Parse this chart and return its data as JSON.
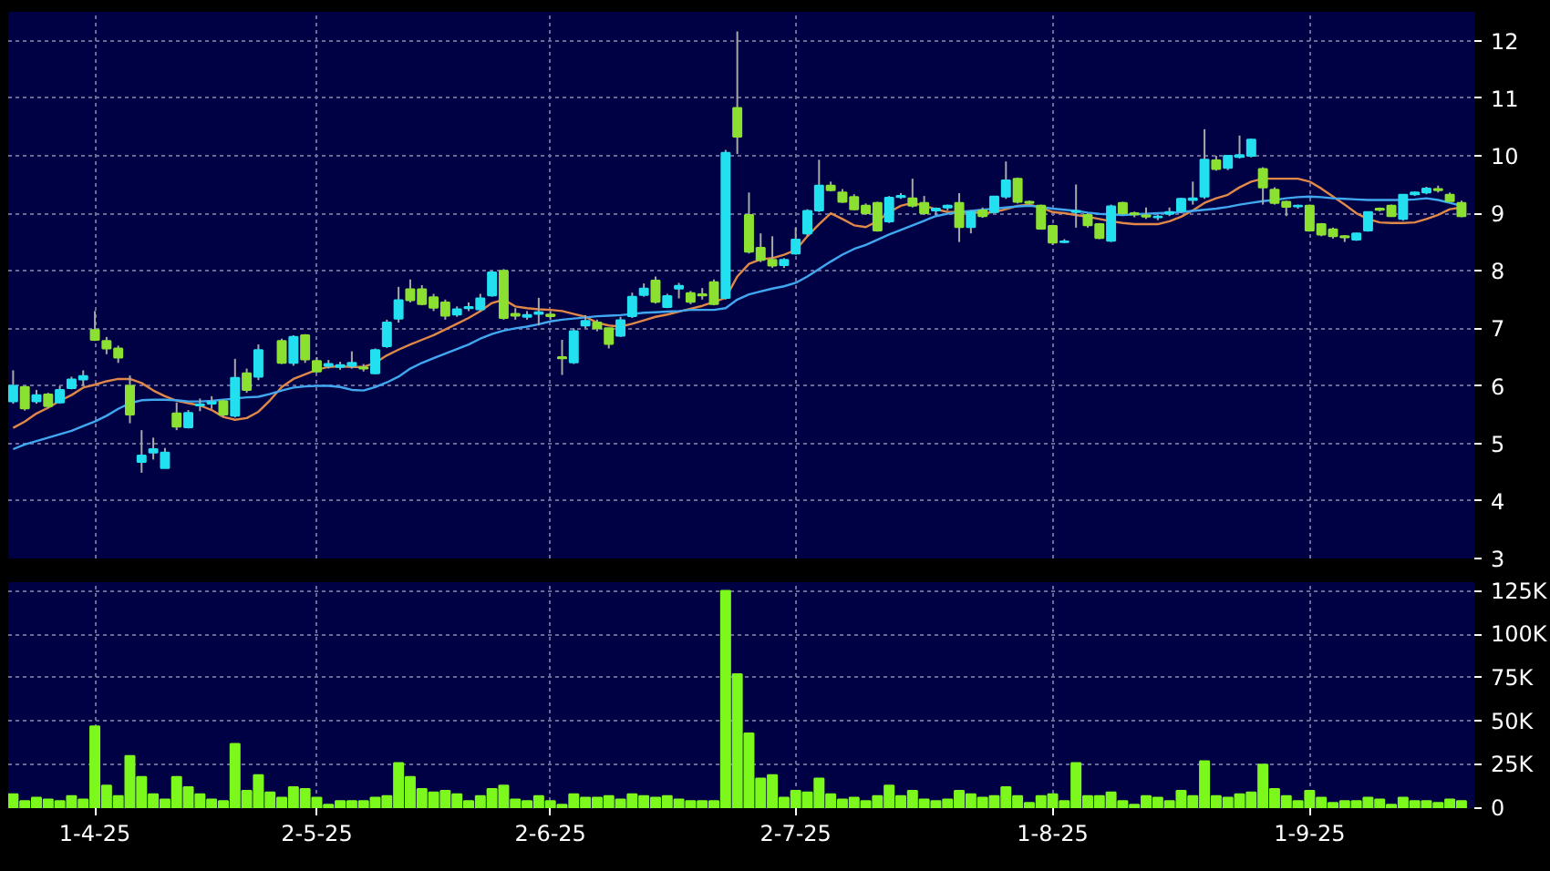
{
  "chart_data": [
    {
      "type": "candlestick",
      "categories": [
        null,
        null,
        null,
        null,
        null,
        null,
        null,
        null,
        null,
        null,
        null,
        null,
        null,
        null,
        null,
        null,
        null,
        null,
        null,
        null,
        null,
        null,
        null,
        null,
        null,
        null,
        null,
        null,
        null,
        null,
        null,
        null,
        null,
        null,
        null,
        null,
        null,
        null,
        null,
        null,
        null,
        null,
        null,
        null,
        null,
        null,
        null,
        null,
        null,
        null,
        null,
        null,
        null,
        null,
        null,
        null,
        null,
        null,
        null,
        null,
        null,
        null,
        null,
        null,
        null,
        null,
        null,
        null,
        null,
        null,
        null,
        null,
        null,
        null,
        null,
        null,
        null,
        null,
        null,
        null,
        null,
        null,
        null,
        null,
        null,
        null,
        null,
        null,
        null,
        null,
        null,
        null,
        null,
        null,
        null,
        null,
        null,
        null,
        null,
        null,
        null,
        null,
        null,
        null,
        null,
        null,
        null,
        null,
        null,
        null,
        null,
        null,
        null,
        null,
        null,
        null,
        null,
        null,
        null,
        null,
        null,
        null,
        null,
        null,
        null
      ],
      "ohlc": [
        [
          5.73,
          6.27,
          5.69,
          6.0
        ],
        [
          5.98,
          6.0,
          5.57,
          5.61
        ],
        [
          5.73,
          5.93,
          5.69,
          5.84
        ],
        [
          5.85,
          5.88,
          5.62,
          5.65
        ],
        [
          5.71,
          6.0,
          5.69,
          5.93
        ],
        [
          5.96,
          6.16,
          5.94,
          6.11
        ],
        [
          6.11,
          6.27,
          6.0,
          6.17
        ],
        [
          6.97,
          7.3,
          6.78,
          6.8
        ],
        [
          6.78,
          6.85,
          6.55,
          6.65
        ],
        [
          6.65,
          6.7,
          6.4,
          6.49
        ],
        [
          6.0,
          6.18,
          5.35,
          5.5
        ],
        [
          4.68,
          5.23,
          4.49,
          4.79
        ],
        [
          4.84,
          5.1,
          4.72,
          4.9
        ],
        [
          4.57,
          4.92,
          4.57,
          4.84
        ],
        [
          5.52,
          5.71,
          5.23,
          5.29
        ],
        [
          5.28,
          5.58,
          5.26,
          5.53
        ],
        [
          5.66,
          5.78,
          5.56,
          5.68
        ],
        [
          5.69,
          5.82,
          5.6,
          5.72
        ],
        [
          5.73,
          5.76,
          5.47,
          5.5
        ],
        [
          5.48,
          6.47,
          5.45,
          6.14
        ],
        [
          6.22,
          6.3,
          5.88,
          5.93
        ],
        [
          6.16,
          6.72,
          6.1,
          6.62
        ],
        null,
        [
          6.78,
          6.82,
          6.38,
          6.4
        ],
        [
          6.4,
          6.88,
          6.35,
          6.85
        ],
        [
          6.88,
          6.9,
          6.4,
          6.46
        ],
        [
          6.43,
          6.5,
          6.23,
          6.25
        ],
        [
          6.35,
          6.45,
          6.3,
          6.38
        ],
        [
          6.33,
          6.42,
          6.28,
          6.36
        ],
        [
          6.35,
          6.6,
          6.3,
          6.4
        ],
        [
          6.32,
          6.38,
          6.25,
          6.3
        ],
        [
          6.22,
          6.65,
          6.2,
          6.62
        ],
        [
          6.69,
          7.15,
          6.66,
          7.1
        ],
        [
          7.17,
          7.72,
          7.1,
          7.49
        ],
        [
          7.68,
          7.85,
          7.45,
          7.49
        ],
        [
          7.68,
          7.75,
          7.4,
          7.42
        ],
        [
          7.54,
          7.6,
          7.3,
          7.36
        ],
        [
          7.45,
          7.5,
          7.15,
          7.22
        ],
        [
          7.24,
          7.38,
          7.2,
          7.33
        ],
        [
          7.35,
          7.45,
          7.3,
          7.37
        ],
        [
          7.33,
          7.6,
          7.3,
          7.52
        ],
        [
          7.57,
          8.0,
          7.55,
          7.97
        ],
        [
          8.0,
          8.03,
          7.15,
          7.18
        ],
        [
          7.25,
          7.35,
          7.15,
          7.22
        ],
        [
          7.2,
          7.3,
          7.15,
          7.23
        ],
        [
          7.25,
          7.53,
          7.05,
          7.28
        ],
        [
          7.24,
          7.3,
          7.15,
          7.21
        ],
        [
          6.5,
          6.8,
          6.19,
          6.48
        ],
        [
          6.41,
          7.0,
          6.38,
          6.95
        ],
        [
          7.05,
          7.23,
          7.0,
          7.13
        ],
        [
          7.1,
          7.15,
          6.95,
          7.0
        ],
        [
          7.0,
          7.0,
          6.65,
          6.73
        ],
        [
          6.87,
          7.2,
          6.85,
          7.14
        ],
        [
          7.21,
          7.62,
          7.18,
          7.55
        ],
        [
          7.58,
          7.78,
          7.55,
          7.69
        ],
        [
          7.83,
          7.9,
          7.43,
          7.46
        ],
        [
          7.37,
          7.6,
          7.35,
          7.56
        ],
        [
          7.69,
          7.79,
          7.52,
          7.74
        ],
        [
          7.61,
          7.65,
          7.42,
          7.46
        ],
        [
          7.59,
          7.7,
          7.5,
          7.57
        ],
        [
          7.8,
          7.85,
          7.4,
          7.42
        ],
        [
          7.53,
          10.1,
          7.5,
          10.05
        ],
        [
          10.83,
          12.16,
          10.03,
          10.33
        ],
        [
          8.97,
          9.36,
          8.3,
          8.33
        ],
        [
          8.4,
          8.65,
          8.15,
          8.19
        ],
        [
          8.19,
          8.6,
          8.05,
          8.09
        ],
        [
          8.1,
          8.22,
          8.05,
          8.19
        ],
        [
          8.3,
          8.75,
          8.28,
          8.54
        ],
        [
          8.65,
          9.07,
          8.6,
          9.04
        ],
        [
          9.05,
          9.93,
          9.02,
          9.48
        ],
        [
          9.48,
          9.55,
          9.38,
          9.4
        ],
        [
          9.36,
          9.42,
          9.18,
          9.2
        ],
        [
          9.28,
          9.33,
          9.05,
          9.07
        ],
        [
          9.13,
          9.17,
          8.97,
          9.0
        ],
        [
          9.18,
          9.2,
          8.68,
          8.7
        ],
        [
          8.86,
          9.3,
          8.83,
          9.27
        ],
        [
          9.28,
          9.35,
          9.25,
          9.3
        ],
        [
          9.26,
          9.6,
          9.1,
          9.13
        ],
        [
          9.18,
          9.3,
          8.97,
          9.0
        ],
        [
          9.05,
          9.1,
          8.97,
          9.08
        ],
        [
          9.1,
          9.15,
          9.05,
          9.13
        ],
        [
          9.18,
          9.35,
          8.5,
          8.76
        ],
        [
          8.76,
          9.05,
          8.65,
          9.02
        ],
        [
          9.05,
          9.1,
          8.92,
          8.95
        ],
        [
          9.02,
          9.3,
          9.0,
          9.29
        ],
        [
          9.29,
          9.9,
          9.25,
          9.57
        ],
        [
          9.6,
          9.62,
          9.17,
          9.2
        ],
        [
          9.2,
          9.22,
          9.15,
          9.18
        ],
        [
          9.13,
          9.15,
          8.72,
          8.73
        ],
        [
          8.78,
          8.8,
          8.45,
          8.49
        ],
        [
          8.5,
          8.55,
          8.48,
          8.51
        ],
        [
          9.02,
          9.5,
          8.75,
          9.04
        ],
        [
          8.97,
          9.0,
          8.75,
          8.79
        ],
        [
          8.81,
          8.83,
          8.55,
          8.57
        ],
        [
          8.52,
          9.15,
          8.5,
          9.12
        ],
        [
          9.18,
          9.2,
          8.97,
          9.0
        ],
        [
          9.0,
          9.03,
          8.93,
          8.98
        ],
        [
          8.96,
          9.1,
          8.9,
          8.94
        ],
        [
          8.93,
          8.98,
          8.88,
          8.94
        ],
        [
          8.99,
          9.1,
          8.95,
          9.02
        ],
        [
          9.04,
          9.27,
          9.0,
          9.25
        ],
        [
          9.23,
          9.55,
          9.15,
          9.26
        ],
        [
          9.29,
          10.46,
          9.25,
          9.93
        ],
        [
          9.92,
          10.0,
          9.74,
          9.77
        ],
        [
          9.79,
          10.0,
          9.75,
          10.0
        ],
        [
          9.98,
          10.35,
          9.95,
          10.01
        ],
        [
          10.0,
          10.3,
          9.97,
          10.28
        ],
        [
          9.77,
          9.8,
          9.15,
          9.45
        ],
        [
          9.41,
          9.45,
          9.15,
          9.18
        ],
        [
          9.2,
          9.22,
          8.95,
          9.11
        ],
        [
          9.12,
          9.15,
          9.08,
          9.13
        ],
        [
          9.13,
          9.15,
          8.68,
          8.7
        ],
        [
          8.81,
          8.83,
          8.6,
          8.63
        ],
        [
          8.72,
          8.75,
          8.56,
          8.6
        ],
        [
          8.6,
          8.62,
          8.5,
          8.58
        ],
        [
          8.54,
          8.66,
          8.52,
          8.65
        ],
        [
          8.7,
          9.03,
          8.68,
          9.02
        ],
        [
          9.08,
          9.1,
          9.03,
          9.06
        ],
        [
          9.13,
          9.15,
          8.94,
          8.95
        ],
        [
          8.9,
          9.33,
          8.87,
          9.32
        ],
        [
          9.33,
          9.38,
          9.3,
          9.36
        ],
        [
          9.36,
          9.46,
          9.33,
          9.43
        ],
        [
          9.42,
          9.48,
          9.36,
          9.4
        ],
        [
          9.32,
          9.36,
          9.2,
          9.21
        ],
        [
          9.18,
          9.22,
          8.93,
          8.95
        ]
      ],
      "colors": [
        "#22e0f0",
        "#8be031",
        "#22e0f0",
        "#8be031",
        "#22e0f0",
        "#22e0f0",
        "#22e0f0",
        "#8be031",
        "#8be031",
        "#8be031",
        "#8be031",
        "#22e0f0",
        "#22e0f0",
        "#22e0f0",
        "#8be031",
        "#22e0f0",
        "#22e0f0",
        "#22e0f0",
        "#8be031",
        "#22e0f0",
        "#8be031",
        "#22e0f0",
        null,
        "#8be031",
        "#22e0f0",
        "#8be031",
        "#8be031",
        "#22e0f0",
        "#22e0f0",
        "#22e0f0",
        "#8be031",
        "#22e0f0",
        "#22e0f0",
        "#22e0f0",
        "#8be031",
        "#8be031",
        "#8be031",
        "#8be031",
        "#22e0f0",
        "#22e0f0",
        "#22e0f0",
        "#22e0f0",
        "#8be031",
        "#8be031",
        "#22e0f0",
        "#22e0f0",
        "#8be031",
        "#8be031",
        "#22e0f0",
        "#22e0f0",
        "#8be031",
        "#8be031",
        "#22e0f0",
        "#22e0f0",
        "#22e0f0",
        "#8be031",
        "#22e0f0",
        "#22e0f0",
        "#8be031",
        "#8be031",
        "#8be031",
        "#22e0f0",
        "#8be031",
        "#8be031",
        "#8be031",
        "#8be031",
        "#22e0f0",
        "#22e0f0",
        "#22e0f0",
        "#22e0f0",
        "#8be031",
        "#8be031",
        "#8be031",
        "#8be031",
        "#8be031",
        "#22e0f0",
        "#22e0f0",
        "#8be031",
        "#8be031",
        "#22e0f0",
        "#22e0f0",
        "#8be031",
        "#22e0f0",
        "#8be031",
        "#22e0f0",
        "#22e0f0",
        "#8be031",
        "#8be031",
        "#8be031",
        "#8be031",
        "#22e0f0",
        "#22e0f0",
        "#8be031",
        "#8be031",
        "#22e0f0",
        "#8be031",
        "#8be031",
        "#8be031",
        "#22e0f0",
        "#22e0f0",
        "#22e0f0",
        "#22e0f0",
        "#22e0f0",
        "#8be031",
        "#22e0f0",
        "#22e0f0",
        "#22e0f0",
        "#8be031",
        "#8be031",
        "#8be031",
        "#22e0f0",
        "#8be031",
        "#8be031",
        "#8be031",
        "#8be031",
        "#22e0f0",
        "#22e0f0",
        "#8be031",
        "#8be031",
        "#22e0f0",
        "#22e0f0",
        "#22e0f0",
        "#8be031",
        "#8be031",
        "#8be031"
      ],
      "series": [
        {
          "type": "line",
          "color": "#e08848",
          "values": [
            5.27,
            5.38,
            5.52,
            5.62,
            5.74,
            5.84,
            5.97,
            6.02,
            6.08,
            6.12,
            6.12,
            6.05,
            5.92,
            5.82,
            5.74,
            5.7,
            5.66,
            5.58,
            5.46,
            5.41,
            5.44,
            5.55,
            5.75,
            5.98,
            6.12,
            6.2,
            6.28,
            6.33,
            6.34,
            6.33,
            6.33,
            6.4,
            6.53,
            6.63,
            6.72,
            6.8,
            6.88,
            6.98,
            7.08,
            7.18,
            7.3,
            7.44,
            7.5,
            7.38,
            7.35,
            7.33,
            7.32,
            7.3,
            7.25,
            7.2,
            7.1,
            7.05,
            7.03,
            7.08,
            7.14,
            7.2,
            7.24,
            7.29,
            7.34,
            7.39,
            7.46,
            7.53,
            7.9,
            8.12,
            8.2,
            8.22,
            8.28,
            8.36,
            8.6,
            8.81,
            9.0,
            8.9,
            8.79,
            8.76,
            8.86,
            9.02,
            9.13,
            9.18,
            9.13,
            9.07,
            9.02,
            9.02,
            9.02,
            9.0,
            9.02,
            9.07,
            9.13,
            9.15,
            9.1,
            9.02,
            9.0,
            8.97,
            8.94,
            8.9,
            8.86,
            8.83,
            8.81,
            8.81,
            8.81,
            8.86,
            8.94,
            9.05,
            9.18,
            9.26,
            9.32,
            9.45,
            9.55,
            9.6,
            9.6,
            9.6,
            9.6,
            9.55,
            9.43,
            9.29,
            9.15,
            9.0,
            8.9,
            8.84,
            8.83,
            8.83,
            8.84,
            8.9,
            8.97,
            9.07,
            9.1
          ]
        },
        {
          "type": "line",
          "color": "#40a8f0",
          "values": [
            4.9,
            4.98,
            5.04,
            5.1,
            5.16,
            5.22,
            5.3,
            5.38,
            5.48,
            5.6,
            5.7,
            5.75,
            5.76,
            5.76,
            5.75,
            5.73,
            5.73,
            5.74,
            5.76,
            5.78,
            5.8,
            5.81,
            5.86,
            5.92,
            5.97,
            5.99,
            6.0,
            6.0,
            5.98,
            5.93,
            5.92,
            5.98,
            6.06,
            6.16,
            6.3,
            6.4,
            6.48,
            6.56,
            6.64,
            6.72,
            6.82,
            6.9,
            6.96,
            7.0,
            7.03,
            7.07,
            7.12,
            7.15,
            7.17,
            7.19,
            7.21,
            7.22,
            7.23,
            7.25,
            7.27,
            7.28,
            7.29,
            7.3,
            7.32,
            7.32,
            7.32,
            7.35,
            7.5,
            7.59,
            7.64,
            7.69,
            7.73,
            7.79,
            7.9,
            8.03,
            8.16,
            8.28,
            8.38,
            8.45,
            8.54,
            8.63,
            8.71,
            8.79,
            8.87,
            8.95,
            8.99,
            9.02,
            9.04,
            9.06,
            9.08,
            9.1,
            9.12,
            9.13,
            9.11,
            9.08,
            9.06,
            9.04,
            9.01,
            8.99,
            8.98,
            8.97,
            8.98,
            8.99,
            9.0,
            9.01,
            9.02,
            9.04,
            9.06,
            9.08,
            9.11,
            9.15,
            9.18,
            9.21,
            9.23,
            9.26,
            9.28,
            9.29,
            9.28,
            9.26,
            9.25,
            9.24,
            9.23,
            9.23,
            9.23,
            9.23,
            9.24,
            9.26,
            9.23,
            9.18,
            9.13
          ]
        }
      ],
      "ylim": [
        3,
        12.5
      ],
      "yticks": [
        3,
        4,
        5,
        6,
        7,
        8,
        9,
        10,
        11,
        12
      ],
      "grid": true,
      "tick_labels": "y"
    },
    {
      "type": "bar",
      "categories": [
        null,
        null,
        null,
        null,
        null,
        null,
        null,
        "1-4-25",
        null,
        null,
        null,
        null,
        null,
        null,
        null,
        null,
        null,
        null,
        null,
        null,
        null,
        null,
        null,
        null,
        null,
        null,
        "2-5-25",
        null,
        null,
        null,
        null,
        null,
        null,
        null,
        null,
        null,
        null,
        null,
        null,
        null,
        null,
        null,
        null,
        null,
        null,
        null,
        "2-6-25",
        null,
        null,
        null,
        null,
        null,
        null,
        null,
        null,
        null,
        null,
        null,
        null,
        null,
        null,
        null,
        null,
        null,
        null,
        null,
        null,
        "2-7-25",
        null,
        null,
        null,
        null,
        null,
        null,
        null,
        null,
        null,
        null,
        null,
        null,
        null,
        null,
        null,
        null,
        null,
        null,
        null,
        null,
        null,
        "1-8-25",
        null,
        null,
        null,
        null,
        null,
        null,
        null,
        null,
        null,
        null,
        null,
        null,
        null,
        null,
        null,
        null,
        null,
        null,
        null,
        null,
        null,
        "1-9-25",
        null,
        null,
        null,
        null,
        null,
        null,
        null,
        null,
        null,
        null,
        null,
        null,
        null
      ],
      "values": [
        8000,
        4000,
        6000,
        5000,
        4000,
        7000,
        5000,
        47000,
        13000,
        7000,
        30000,
        18000,
        8000,
        5000,
        18000,
        12000,
        8000,
        5000,
        4000,
        37000,
        10000,
        19000,
        9000,
        6000,
        12000,
        11000,
        6000,
        2000,
        4000,
        4000,
        4000,
        6000,
        7000,
        26000,
        18000,
        11000,
        9000,
        10000,
        8000,
        4000,
        7000,
        11000,
        13000,
        5000,
        4000,
        7000,
        4000,
        2000,
        8000,
        6000,
        6000,
        7000,
        5000,
        8000,
        7000,
        6000,
        7000,
        5000,
        4000,
        4000,
        4000,
        125000,
        77000,
        43000,
        17000,
        19000,
        6000,
        10000,
        9000,
        17000,
        8000,
        5000,
        6000,
        4000,
        7000,
        13000,
        7000,
        10000,
        5000,
        4000,
        5000,
        10000,
        8000,
        6000,
        7000,
        12000,
        7000,
        3000,
        7000,
        8000,
        4000,
        26000,
        7000,
        7000,
        9000,
        4000,
        2000,
        7000,
        6000,
        4000,
        10000,
        7000,
        27000,
        7000,
        6000,
        8000,
        9000,
        25000,
        11000,
        7000,
        4000,
        10000,
        6000,
        3000,
        4000,
        4000,
        6000,
        5000,
        2000,
        6000,
        4000,
        4000,
        3000,
        5000,
        4000
      ],
      "color": "#7cf81c",
      "ylim": [
        0,
        130000
      ],
      "yticks": [
        0,
        {
          "value": 25000,
          "label": "25K"
        },
        {
          "value": 50000,
          "label": "50K"
        },
        {
          "value": 75000,
          "label": "75K"
        },
        {
          "value": 100000,
          "label": "100K"
        },
        {
          "value": 125000,
          "label": "125K"
        }
      ],
      "grid": true
    }
  ]
}
